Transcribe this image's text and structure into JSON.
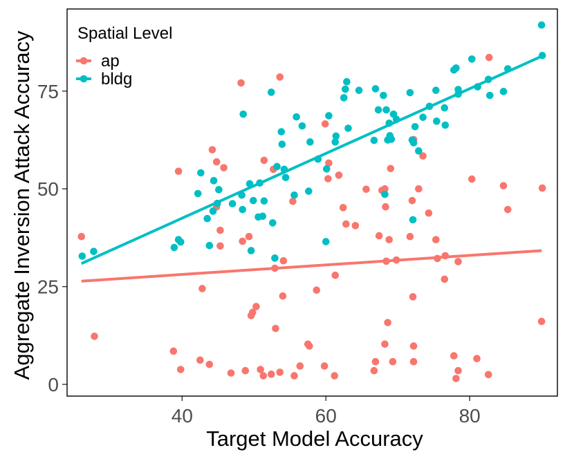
{
  "chart_data": {
    "type": "scatter",
    "title": "",
    "xlabel": "Target Model Accuracy",
    "ylabel": "Aggregate Inversion Attack Accuracy",
    "xlim": [
      24.0,
      92.2
    ],
    "ylim": [
      -3,
      96
    ],
    "xticks": [
      40,
      60,
      80
    ],
    "yticks": [
      0,
      25,
      50,
      75
    ],
    "xtick_labels": [
      "40",
      "60",
      "80"
    ],
    "ytick_labels": [
      "0",
      "25",
      "50",
      "75"
    ],
    "grid": false,
    "legend": {
      "title": "Spatial Level",
      "position": "top-left"
    },
    "series": [
      {
        "name": "ap",
        "color": "#F8766D",
        "trend": [
          [
            26,
            26.4
          ],
          [
            90,
            34.2
          ]
        ],
        "points": [
          [
            26,
            37.8
          ],
          [
            27.8,
            12.3
          ],
          [
            38.8,
            8.5
          ],
          [
            39.5,
            54.5
          ],
          [
            39.8,
            3.8
          ],
          [
            42.5,
            6.2
          ],
          [
            42.8,
            24.5
          ],
          [
            43.8,
            5.1
          ],
          [
            44.2,
            60.0
          ],
          [
            44.8,
            45.4
          ],
          [
            44.8,
            56.9
          ],
          [
            45.3,
            35.4
          ],
          [
            45.3,
            39.4
          ],
          [
            45.8,
            55.4
          ],
          [
            46.8,
            2.9
          ],
          [
            48.2,
            77.1
          ],
          [
            48.4,
            36.6
          ],
          [
            48.8,
            3.5
          ],
          [
            49.3,
            37.8
          ],
          [
            49.6,
            17.6
          ],
          [
            49.8,
            18.4
          ],
          [
            50.3,
            19.9
          ],
          [
            50.9,
            3.8
          ],
          [
            51.3,
            2.2
          ],
          [
            51.4,
            57.3
          ],
          [
            52.4,
            2.6
          ],
          [
            52.7,
            55.0
          ],
          [
            52.9,
            29.7
          ],
          [
            53.0,
            14.3
          ],
          [
            53.6,
            3.1
          ],
          [
            53.6,
            78.6
          ],
          [
            54.0,
            22.6
          ],
          [
            54.1,
            31.6
          ],
          [
            55.4,
            46.8
          ],
          [
            55.6,
            2.2
          ],
          [
            56.4,
            4.7
          ],
          [
            57.5,
            10.3
          ],
          [
            57.7,
            9.8
          ],
          [
            58.7,
            24.1
          ],
          [
            59.8,
            4.7
          ],
          [
            59.9,
            66.6
          ],
          [
            60.3,
            52.6
          ],
          [
            60.4,
            56.6
          ],
          [
            61.2,
            2.2
          ],
          [
            61.3,
            27.9
          ],
          [
            61.8,
            53.5
          ],
          [
            62.4,
            45.2
          ],
          [
            62.8,
            41.0
          ],
          [
            64.1,
            40.6
          ],
          [
            65.6,
            49.9
          ],
          [
            66.7,
            3.5
          ],
          [
            66.9,
            5.8
          ],
          [
            67.4,
            38.0
          ],
          [
            67.8,
            49.6
          ],
          [
            68.2,
            10.3
          ],
          [
            68.2,
            50.0
          ],
          [
            68.3,
            45.4
          ],
          [
            68.4,
            31.5
          ],
          [
            68.6,
            15.8
          ],
          [
            68.8,
            37.0
          ],
          [
            69.0,
            55.2
          ],
          [
            69.3,
            5.8
          ],
          [
            69.8,
            31.8
          ],
          [
            71.7,
            37.8
          ],
          [
            72.0,
            47.0
          ],
          [
            72.1,
            22.4
          ],
          [
            72.2,
            5.8
          ],
          [
            72.2,
            9.8
          ],
          [
            72.2,
            62.6
          ],
          [
            72.9,
            50.0
          ],
          [
            73.5,
            58.4
          ],
          [
            74.3,
            43.8
          ],
          [
            75.3,
            37.0
          ],
          [
            75.5,
            32.2
          ],
          [
            76.5,
            26.9
          ],
          [
            76.6,
            32.9
          ],
          [
            77.8,
            7.3
          ],
          [
            78.1,
            1.5
          ],
          [
            78.4,
            3.5
          ],
          [
            78.4,
            31.4
          ],
          [
            80.3,
            52.5
          ],
          [
            81.0,
            6.6
          ],
          [
            82.6,
            2.5
          ],
          [
            82.7,
            83.6
          ],
          [
            84.7,
            50.8
          ],
          [
            85.3,
            44.7
          ],
          [
            90.0,
            16.1
          ],
          [
            90.1,
            50.2
          ]
        ]
      },
      {
        "name": "bldg",
        "color": "#00BFC4",
        "trend": [
          [
            26,
            30.9
          ],
          [
            90,
            83.9
          ]
        ],
        "points": [
          [
            26.1,
            32.8
          ],
          [
            27.7,
            34.0
          ],
          [
            38.9,
            35.0
          ],
          [
            39.5,
            37.0
          ],
          [
            39.8,
            36.4
          ],
          [
            42.2,
            48.8
          ],
          [
            42.6,
            54.1
          ],
          [
            43.5,
            42.4
          ],
          [
            43.8,
            35.5
          ],
          [
            44.3,
            44.3
          ],
          [
            44.4,
            52.1
          ],
          [
            44.9,
            46.3
          ],
          [
            45.1,
            49.8
          ],
          [
            47.0,
            46.2
          ],
          [
            48.3,
            48.4
          ],
          [
            48.4,
            44.7
          ],
          [
            48.5,
            69.1
          ],
          [
            49.4,
            51.3
          ],
          [
            49.6,
            34.2
          ],
          [
            49.9,
            47.0
          ],
          [
            50.6,
            42.8
          ],
          [
            50.8,
            51.5
          ],
          [
            51.2,
            43.0
          ],
          [
            51.4,
            46.9
          ],
          [
            52.4,
            74.7
          ],
          [
            52.6,
            41.3
          ],
          [
            52.9,
            32.3
          ],
          [
            53.2,
            55.7
          ],
          [
            53.8,
            64.6
          ],
          [
            53.9,
            61.4
          ],
          [
            54.2,
            55.0
          ],
          [
            54.4,
            52.9
          ],
          [
            55.6,
            48.4
          ],
          [
            55.9,
            68.4
          ],
          [
            56.7,
            66.1
          ],
          [
            57.6,
            49.4
          ],
          [
            57.8,
            62.0
          ],
          [
            58.9,
            57.6
          ],
          [
            60.0,
            36.5
          ],
          [
            60.1,
            55.1
          ],
          [
            60.4,
            68.7
          ],
          [
            61.3,
            62.0
          ],
          [
            61.4,
            63.5
          ],
          [
            62.5,
            73.3
          ],
          [
            62.7,
            75.5
          ],
          [
            62.9,
            77.4
          ],
          [
            63.1,
            65.5
          ],
          [
            64.6,
            75.2
          ],
          [
            66.7,
            62.4
          ],
          [
            66.9,
            75.6
          ],
          [
            67.3,
            70.2
          ],
          [
            68.0,
            73.9
          ],
          [
            68.2,
            48.6
          ],
          [
            68.4,
            70.2
          ],
          [
            68.6,
            62.5
          ],
          [
            68.8,
            66.8
          ],
          [
            68.9,
            63.6
          ],
          [
            69.1,
            62.7
          ],
          [
            69.4,
            69.1
          ],
          [
            69.8,
            67.8
          ],
          [
            71.7,
            74.6
          ],
          [
            72.0,
            62.5
          ],
          [
            72.1,
            42.1
          ],
          [
            72.2,
            61.8
          ],
          [
            72.4,
            65.9
          ],
          [
            72.9,
            59.7
          ],
          [
            73.5,
            68.3
          ],
          [
            74.4,
            71.1
          ],
          [
            75.3,
            75.2
          ],
          [
            75.4,
            67.3
          ],
          [
            76.5,
            70.7
          ],
          [
            76.6,
            66.3
          ],
          [
            77.8,
            80.4
          ],
          [
            78.1,
            80.9
          ],
          [
            78.4,
            75.4
          ],
          [
            78.4,
            74.2
          ],
          [
            80.3,
            83.2
          ],
          [
            81.1,
            76.1
          ],
          [
            82.6,
            78.0
          ],
          [
            82.8,
            73.9
          ],
          [
            84.7,
            74.9
          ],
          [
            85.3,
            80.7
          ],
          [
            90.0,
            91.9
          ],
          [
            90.1,
            84.1
          ]
        ]
      }
    ]
  }
}
